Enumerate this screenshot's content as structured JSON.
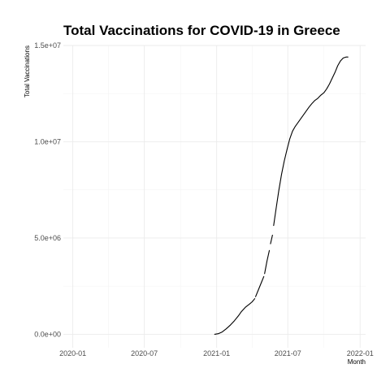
{
  "chart_data": {
    "type": "line",
    "title": "Total Vaccinations for COVID-19 in Greece",
    "xlabel": "Month",
    "ylabel": "Total Vaccinations",
    "x_tick_labels": [
      "2020-01",
      "2020-07",
      "2021-01",
      "2021-07",
      "2022-01"
    ],
    "y_tick_labels": [
      "0.0e+00",
      "5.0e+06",
      "1.0e+07",
      "1.5e+07"
    ],
    "x_ticks": [
      "2020-01-01",
      "2020-07-01",
      "2021-01-01",
      "2021-07-01",
      "2022-01-01"
    ],
    "y_ticks": [
      0,
      5000000,
      10000000,
      15000000
    ],
    "xlim": [
      "2019-12-08",
      "2022-01-15"
    ],
    "ylim": [
      -700000,
      15000000
    ],
    "grid": true,
    "series": [
      {
        "color": "#000000",
        "segments": [
          {
            "x": [
              "2020-12-27",
              "2021-01-05",
              "2021-01-15",
              "2021-01-25",
              "2021-02-05",
              "2021-02-15",
              "2021-02-25",
              "2021-03-05",
              "2021-03-15",
              "2021-03-25",
              "2021-04-01",
              "2021-04-08"
            ],
            "y": [
              0,
              30000,
              120000,
              280000,
              480000,
              700000,
              950000,
              1180000,
              1400000,
              1560000,
              1680000,
              1850000
            ]
          },
          {
            "x": [
              "2021-04-10",
              "2021-04-18",
              "2021-04-26",
              "2021-05-01"
            ],
            "y": [
              1950000,
              2350000,
              2750000,
              3000000
            ]
          },
          {
            "x": [
              "2021-05-03",
              "2021-05-09",
              "2021-05-15"
            ],
            "y": [
              3150000,
              3800000,
              4350000
            ]
          },
          {
            "x": [
              "2021-05-18",
              "2021-05-23"
            ],
            "y": [
              4700000,
              5150000
            ]
          },
          {
            "x": [
              "2021-05-26",
              "2021-06-01",
              "2021-06-08",
              "2021-06-15",
              "2021-06-22",
              "2021-06-29",
              "2021-07-06",
              "2021-07-13",
              "2021-07-20",
              "2021-07-27",
              "2021-08-03",
              "2021-08-10",
              "2021-08-17",
              "2021-08-24",
              "2021-09-01",
              "2021-09-08",
              "2021-09-15",
              "2021-09-22",
              "2021-10-01",
              "2021-10-08",
              "2021-10-15",
              "2021-10-22",
              "2021-10-29",
              "2021-11-05",
              "2021-11-12",
              "2021-11-19",
              "2021-11-26",
              "2021-12-01"
            ],
            "y": [
              5650000,
              6500000,
              7450000,
              8300000,
              9000000,
              9600000,
              10150000,
              10550000,
              10800000,
              11000000,
              11200000,
              11400000,
              11600000,
              11800000,
              12000000,
              12150000,
              12250000,
              12400000,
              12550000,
              12750000,
              13000000,
              13300000,
              13600000,
              13950000,
              14200000,
              14350000,
              14400000,
              14400000
            ]
          }
        ]
      }
    ]
  }
}
